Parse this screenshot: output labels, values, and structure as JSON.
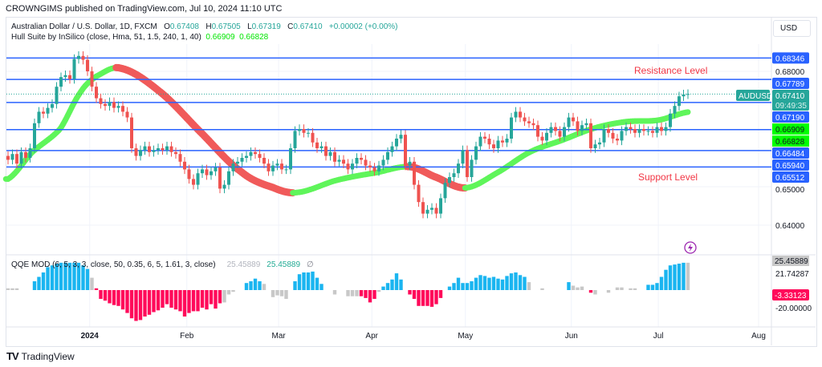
{
  "header": {
    "publisher": "CROWNGIMS published on TradingView.com, Jul 10, 2024 11:10 UTC"
  },
  "legend": {
    "symbol": "Australian Dollar / U.S. Dollar, 1D, FXCM",
    "o_label": "O",
    "o": "0.67408",
    "h_label": "H",
    "h": "0.67505",
    "l_label": "L",
    "l": "0.67319",
    "c_label": "C",
    "c": "0.67410",
    "change": "+0.00002 (+0.00%)",
    "hull_name": "Hull Suite by InSilico (close, Hma, 51, 1.5, 240, 1, 40)",
    "hull_v1": "0.66909",
    "hull_v2": "0.66828",
    "qqe_name": "QQE MOD (6, 5, 3, 3, close, 50, 0.35, 6, 5, 1.61, 3, close)",
    "qqe_v1": "25.45889",
    "qqe_v2": "25.45889",
    "qqe_sym": "∅"
  },
  "axis": {
    "currency": "USD",
    "symbol_tag": "AUDUSD",
    "last_price": "0.67410",
    "countdown": "09:49:35"
  },
  "annotations": {
    "resistance": "Resistance Level",
    "support": "Support Level"
  },
  "brand": {
    "name": "TradingView",
    "logo": "TV"
  },
  "colors": {
    "up": "#26a69a",
    "down": "#ef5350",
    "level": "#2962ff",
    "hull_up": "#5ff55a",
    "hull_down": "#f05a5a",
    "qqe_blue": "#1ab5f0",
    "qqe_red": "#ff0a5a",
    "qqe_gray": "#c8c8c8",
    "annot": "#f23645"
  },
  "chart_data": {
    "type": "candlestick",
    "title": "Australian Dollar / U.S. Dollar, 1D, FXCM",
    "ylim": [
      0.6365,
      0.6875
    ],
    "price_ticks": [
      "0.68000",
      "0.65000",
      "0.64000"
    ],
    "price_tick_values": [
      0.68,
      0.65,
      0.64
    ],
    "x_ticks": [
      {
        "label": "2024",
        "index": 18.5,
        "bold": true
      },
      {
        "label": "Feb",
        "index": 40.5
      },
      {
        "label": "Mar",
        "index": 61.3
      },
      {
        "label": "Apr",
        "index": 82.4
      },
      {
        "label": "May",
        "index": 103.6
      },
      {
        "label": "Jun",
        "index": 127.6
      },
      {
        "label": "Jul",
        "index": 147.3
      },
      {
        "label": "Aug",
        "index": 170
      }
    ],
    "closes": [
      0.657,
      0.6585,
      0.656,
      0.659,
      0.6575,
      0.66,
      0.6665,
      0.6695,
      0.669,
      0.6705,
      0.6715,
      0.676,
      0.6785,
      0.679,
      0.678,
      0.6832,
      0.684,
      0.683,
      0.68,
      0.676,
      0.673,
      0.6715,
      0.671,
      0.672,
      0.6705,
      0.671,
      0.6695,
      0.668,
      0.66,
      0.658,
      0.6595,
      0.6605,
      0.659,
      0.6595,
      0.66,
      0.6595,
      0.6605,
      0.659,
      0.6585,
      0.6565,
      0.6545,
      0.652,
      0.6505,
      0.6535,
      0.6545,
      0.653,
      0.654,
      0.655,
      0.6495,
      0.6505,
      0.654,
      0.656,
      0.6565,
      0.6575,
      0.658,
      0.659,
      0.6585,
      0.6575,
      0.656,
      0.654,
      0.6555,
      0.656,
      0.6545,
      0.6545,
      0.66,
      0.6645,
      0.665,
      0.664,
      0.664,
      0.6615,
      0.66,
      0.6605,
      0.658,
      0.659,
      0.6565,
      0.657,
      0.656,
      0.6545,
      0.656,
      0.6575,
      0.657,
      0.6555,
      0.655,
      0.654,
      0.6555,
      0.657,
      0.659,
      0.6605,
      0.6625,
      0.6635,
      0.6555,
      0.6565,
      0.6505,
      0.646,
      0.643,
      0.644,
      0.6445,
      0.643,
      0.647,
      0.651,
      0.6525,
      0.6535,
      0.656,
      0.6595,
      0.6525,
      0.657,
      0.6605,
      0.663,
      0.6625,
      0.661,
      0.66,
      0.662,
      0.6615,
      0.6625,
      0.668,
      0.6695,
      0.668,
      0.667,
      0.6665,
      0.666,
      0.663,
      0.662,
      0.664,
      0.6655,
      0.6645,
      0.663,
      0.6655,
      0.668,
      0.667,
      0.6645,
      0.666,
      0.6665,
      0.66,
      0.661,
      0.6615,
      0.665,
      0.664,
      0.6625,
      0.662,
      0.6645,
      0.6655,
      0.665,
      0.664,
      0.665,
      0.6645,
      0.6645,
      0.664,
      0.6655,
      0.6645,
      0.6655,
      0.669,
      0.671,
      0.6735,
      0.674,
      0.6741
    ],
    "hull": [
      [
        0,
        0.652
      ],
      [
        5.5,
        0.659
      ],
      [
        11.8,
        0.665
      ],
      [
        16.4,
        0.6745
      ],
      [
        20,
        0.6787
      ],
      [
        25.5,
        0.6808
      ],
      [
        34.5,
        0.6746
      ],
      [
        43.6,
        0.6642
      ],
      [
        52.7,
        0.654
      ],
      [
        60,
        0.6498
      ],
      [
        65.5,
        0.6485
      ],
      [
        74.5,
        0.6517
      ],
      [
        83.6,
        0.6537
      ],
      [
        91,
        0.6552
      ],
      [
        96.4,
        0.6527
      ],
      [
        103.6,
        0.6497
      ],
      [
        110.9,
        0.6537
      ],
      [
        118.2,
        0.659
      ],
      [
        125.5,
        0.6621
      ],
      [
        132.7,
        0.6652
      ],
      [
        140,
        0.6669
      ],
      [
        147.3,
        0.6673
      ],
      [
        154,
        0.6694
      ]
    ],
    "levels": [
      {
        "value": 0.68346,
        "label": "0.68346"
      },
      {
        "value": 0.67789,
        "label": "0.67789"
      },
      {
        "value": 0.6719,
        "label": "0.67190"
      },
      {
        "value": 0.66484,
        "label": "0.66484"
      },
      {
        "value": 0.6594,
        "label": "0.65940"
      },
      {
        "value": 0.65512,
        "label": "0.65512"
      }
    ],
    "qqe": {
      "ticks": [
        {
          "label": "21.74287",
          "value": 21.74287
        },
        {
          "label": "-20.00000",
          "value": -20
        }
      ],
      "last_gray": "25.45889",
      "last_red": "-3.33123",
      "values": [
        2,
        2,
        2,
        null,
        null,
        null,
        10,
        15,
        20,
        26,
        28,
        30,
        31,
        31,
        31,
        31,
        31,
        28,
        24,
        14,
        2,
        -10,
        -12,
        -15,
        -17,
        -18,
        -22,
        -26,
        -32,
        -35,
        -34,
        -30,
        -28,
        -25,
        -23,
        -20,
        -16,
        -20,
        -22,
        -24,
        -30,
        -26,
        -24,
        -24,
        -20,
        -22,
        -16,
        -21,
        -15,
        -14,
        -5,
        -2,
        null,
        null,
        8,
        10,
        13,
        10,
        7,
        null,
        -8,
        -6,
        -7,
        -10,
        null,
        10,
        18,
        20,
        20,
        21,
        14,
        7,
        null,
        null,
        -5,
        null,
        null,
        -7,
        -7,
        -7,
        -7,
        -9,
        -14,
        -10,
        -2,
        4,
        8,
        12,
        19,
        12,
        null,
        -5,
        -10,
        -18,
        -18,
        -18,
        -19,
        -16,
        -9,
        null,
        4,
        8,
        14,
        8,
        8,
        10,
        14,
        17,
        16,
        14,
        15,
        13,
        12,
        16,
        19,
        20,
        17,
        15,
        9,
        null,
        null,
        2,
        null,
        null,
        null,
        null,
        null,
        9,
        5,
        3,
        4,
        null,
        -3,
        -5,
        null,
        null,
        -3,
        null,
        3,
        3,
        null,
        2,
        2,
        null,
        null,
        6,
        6,
        8,
        15,
        23,
        28,
        29,
        30,
        31,
        31
      ],
      "colors": "gggnnnbbbbbbbbbbbbbgrrrrrrrrrrrrrrrrrrrrrrrrrrrrrggnnbbbbbngggggnbbbbbbbnngnngggrrrrgbbbbbnrrrrrrrrnbbbbbbbbbbbbbbbbbbnngnnnnnbbggnrrnnrnggnggnnbbbbbbbbbb"
    }
  }
}
